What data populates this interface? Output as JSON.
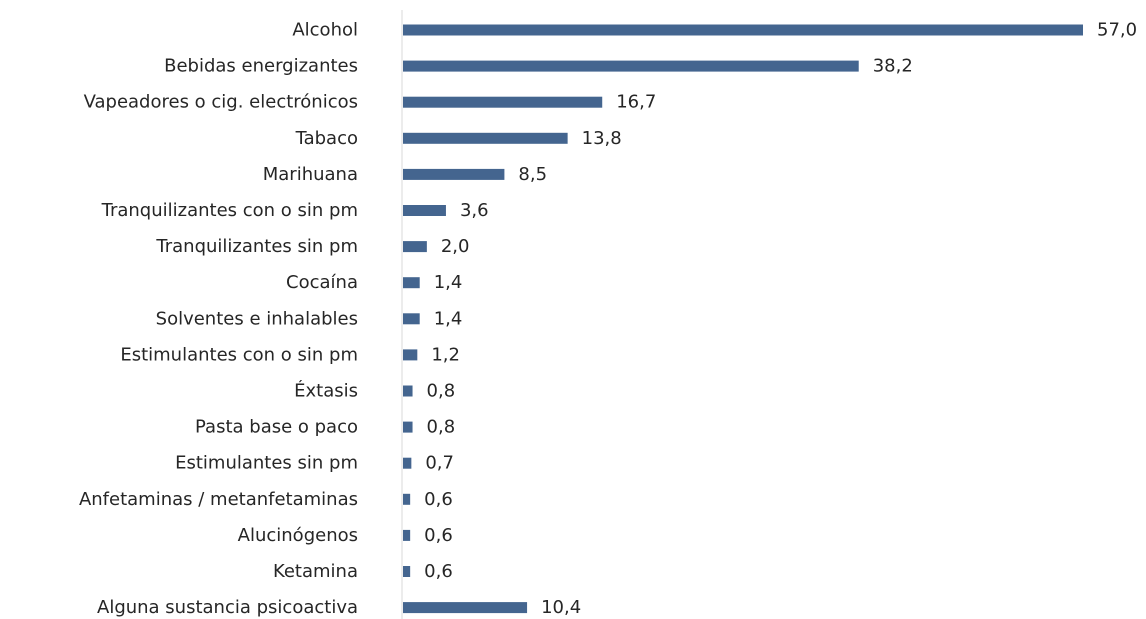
{
  "chart_data": {
    "type": "bar",
    "orientation": "horizontal",
    "categories": [
      "Alcohol",
      "Bebidas energizantes",
      "Vapeadores o cig. electrónicos",
      "Tabaco",
      "Marihuana",
      "Tranquilizantes con o sin pm",
      "Tranquilizantes sin pm",
      "Cocaína",
      "Solventes e inhalables",
      "Estimulantes con o sin pm",
      "Éxtasis",
      "Pasta base o paco",
      "Estimulantes  sin pm",
      "Anfetaminas / metanfetaminas",
      "Alucinógenos",
      "Ketamina",
      "Alguna sustancia psicoactiva"
    ],
    "values": [
      57.0,
      38.2,
      16.7,
      13.8,
      8.5,
      3.6,
      2.0,
      1.4,
      1.4,
      1.2,
      0.8,
      0.8,
      0.7,
      0.6,
      0.6,
      0.6,
      10.4
    ],
    "value_labels": [
      "57,0",
      "38,2",
      "16,7",
      "13,8",
      "8,5",
      "3,6",
      "2,0",
      "1,4",
      "1,4",
      "1,2",
      "0,8",
      "0,8",
      "0,7",
      "0,6",
      "0,6",
      "0,6",
      "10,4"
    ],
    "title": "",
    "xlabel": "",
    "ylabel": "",
    "xlim": [
      0,
      57
    ],
    "grid": false,
    "legend": "none",
    "bar_color": "#44658f",
    "axis_color": "#d9d9d9"
  }
}
